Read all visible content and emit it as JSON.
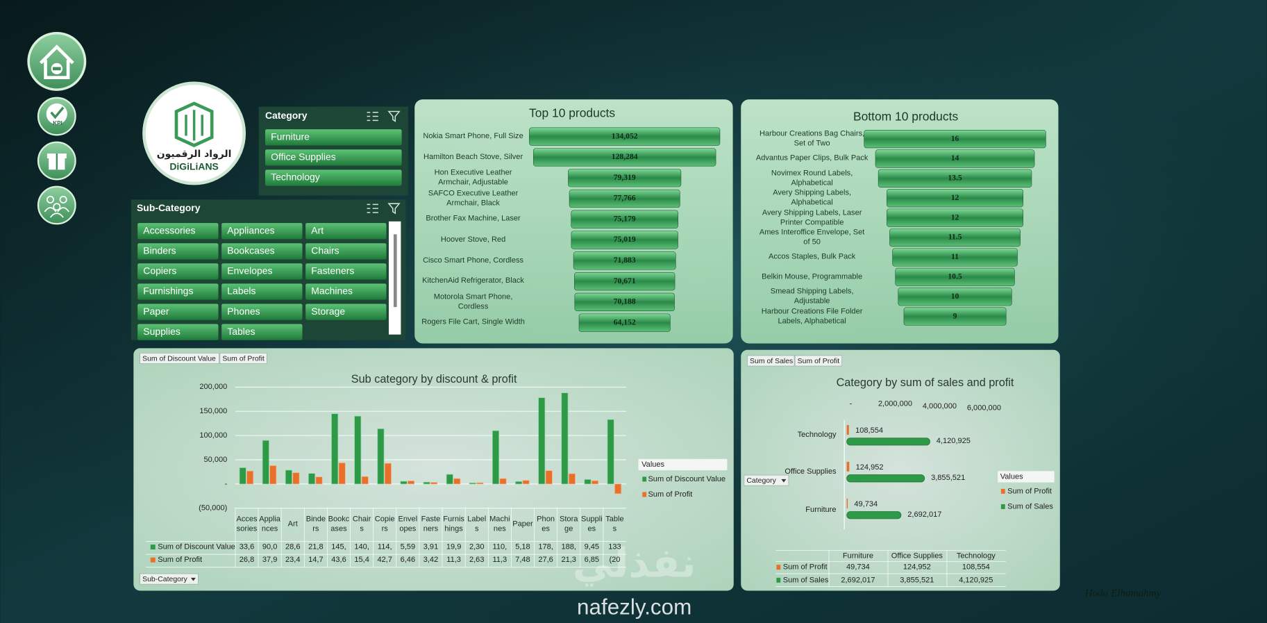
{
  "nav": {
    "kpi_label": "KPI"
  },
  "logo": {
    "arabic": "الرواد الرقميون",
    "name": "DiGiLiANS"
  },
  "category_slicer": {
    "title": "Category",
    "items": [
      "Furniture",
      "Office Supplies",
      "Technology"
    ]
  },
  "subcategory_slicer": {
    "title": "Sub-Category",
    "items": [
      "Accessories",
      "Appliances",
      "Art",
      "Binders",
      "Bookcases",
      "Chairs",
      "Copiers",
      "Envelopes",
      "Fasteners",
      "Furnishings",
      "Labels",
      "Machines",
      "Paper",
      "Phones",
      "Storage",
      "Supplies",
      "Tables"
    ]
  },
  "chart_data": [
    {
      "type": "funnel",
      "title": "Top 10 products",
      "color": "#2f9a4e",
      "categories": [
        "Nokia Smart Phone, Full Size",
        "Hamilton Beach Stove, Silver",
        "Hon Executive Leather Armchair, Adjustable",
        "SAFCO Executive Leather Armchair, Black",
        "Brother Fax Machine, Laser",
        "Hoover Stove, Red",
        "Cisco Smart Phone, Cordless",
        "KitchenAid Refrigerator, Black",
        "Motorola Smart Phone, Cordless",
        "Rogers File Cart, Single Width"
      ],
      "values": [
        134052,
        128284,
        79319,
        77766,
        75179,
        75019,
        71883,
        70671,
        70188,
        64152
      ],
      "value_labels": [
        "134,052",
        "128,284",
        "79,319",
        "77,766",
        "75,179",
        "75,019",
        "71,883",
        "70,671",
        "70,188",
        "64,152"
      ]
    },
    {
      "type": "funnel",
      "title": "Bottom 10 products",
      "color": "#2f9a4e",
      "categories": [
        "Harbour Creations Bag Chairs, Set of Two",
        "Advantus Paper Clips, Bulk Pack",
        "Novimex Round Labels, Alphabetical",
        "Avery Shipping Labels, Alphabetical",
        "Avery Shipping Labels, Laser Printer Compatible",
        "Ames Interoffice Envelope, Set of 50",
        "Accos Staples, Bulk Pack",
        "Belkin Mouse, Programmable",
        "Smead Shipping Labels, Adjustable",
        "Harbour Creations File Folder Labels, Alphabetical"
      ],
      "values": [
        16,
        14,
        13.5,
        12,
        12,
        11.5,
        11,
        10.5,
        10,
        9
      ]
    },
    {
      "type": "bar",
      "title": "Sub category by discount & profit",
      "axis_field": "Sub-Category",
      "legend_title": "Values",
      "grid": true,
      "categories": [
        "Accessories",
        "Appliances",
        "Art",
        "Binders",
        "Bookcases",
        "Chairs",
        "Copiers",
        "Envelopes",
        "Fasteners",
        "Furnishings",
        "Labels",
        "Machines",
        "Paper",
        "Phones",
        "Storage",
        "Supplies",
        "Tables"
      ],
      "series": [
        {
          "name": "Sum of Discount Value",
          "color": "#2e9a48",
          "values": [
            33600,
            90000,
            28600,
            21800,
            145000,
            140000,
            114000,
            5590,
            3910,
            19900,
            2300,
            110000,
            5180,
            178000,
            188000,
            9450,
            133000
          ],
          "value_labels": [
            "33,6",
            "90,0",
            "28,6",
            "21,8",
            "145,",
            "140,",
            "114,",
            "5,59",
            "3,91",
            "19,9",
            "2,30",
            "110,",
            "5,18",
            "178,",
            "188,",
            "9,45",
            "133"
          ]
        },
        {
          "name": "Sum of Profit",
          "color": "#e8702a",
          "values": [
            26800,
            37900,
            23400,
            14700,
            43600,
            15400,
            42700,
            6460,
            3420,
            11300,
            2630,
            11300,
            7480,
            27600,
            21300,
            6850,
            -20000
          ],
          "value_labels": [
            "26,8",
            "37,9",
            "23,4",
            "14,7",
            "43,6",
            "15,4",
            "42,7",
            "6,46",
            "3,42",
            "11,3",
            "2,63",
            "11,3",
            "7,48",
            "27,6",
            "21,3",
            "6,85",
            "(20"
          ]
        }
      ],
      "ylim": [
        -50000,
        200000
      ],
      "yticks": [
        {
          "value": -50000,
          "label": "(50,000)"
        },
        {
          "value": 0,
          "label": "-"
        },
        {
          "value": 50000,
          "label": "50,000"
        },
        {
          "value": 100000,
          "label": "100,000"
        },
        {
          "value": 150000,
          "label": "150,000"
        },
        {
          "value": 200000,
          "label": "200,000"
        }
      ]
    },
    {
      "type": "hbar",
      "title": "Category by sum of sales and profit",
      "axis_field": "Category",
      "legend_title": "Values",
      "categories": [
        "Furniture",
        "Office Supplies",
        "Technology"
      ],
      "series": [
        {
          "name": "Sum of Profit",
          "color": "#e8702a",
          "values": [
            49734,
            124952,
            108554
          ],
          "value_labels": [
            "49,734",
            "124,952",
            "108,554"
          ]
        },
        {
          "name": "Sum of Sales",
          "color": "#2e9a48",
          "values": [
            2692017,
            3855521,
            4120925
          ],
          "value_labels": [
            "2,692,017",
            "3,855,521",
            "4,120,925"
          ]
        }
      ],
      "xlim": [
        0,
        6000000
      ],
      "xticks": [
        {
          "value": 0,
          "label": "-"
        },
        {
          "value": 2000000,
          "label": "2,000,000"
        },
        {
          "value": 4000000,
          "label": "4,000,000"
        },
        {
          "value": 6000000,
          "label": "6,000,000"
        }
      ]
    }
  ],
  "author": "Hoda Elhamahmy",
  "watermark": {
    "arabic": "نفذلي",
    "site": "nafezly.com"
  }
}
